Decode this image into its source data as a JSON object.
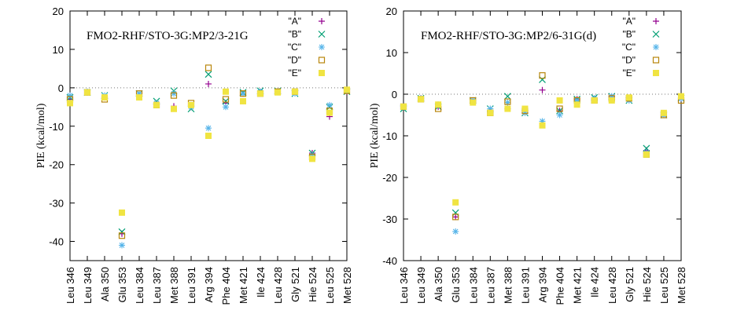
{
  "chart_data": [
    {
      "type": "scatter",
      "title": "FMO2-RHF/STO-3G:MP2/3-21G",
      "xlabel": "",
      "ylabel": "PIE (kcal/mol)",
      "ylim": [
        -45,
        20
      ],
      "yticks": [
        20,
        10,
        0,
        -10,
        -20,
        -30,
        -40
      ],
      "categories": [
        "Leu 346",
        "Leu 349",
        "Ala 350",
        "Glu 353",
        "Leu 384",
        "Leu 387",
        "Met 388",
        "Leu 391",
        "Arg 394",
        "Phe 404",
        "Met 421",
        "Ile 424",
        "Leu 428",
        "Gly 521",
        "Hie 524",
        "Leu 525",
        "Met 528"
      ],
      "zero_line": true,
      "series": [
        {
          "name": "\"A\"",
          "color": "#94008f",
          "marker": "plus",
          "values": [
            -3.0,
            -1.2,
            -2.5,
            -38.0,
            -2.0,
            -4.5,
            -4.8,
            -5.0,
            1.0,
            -4.0,
            -1.5,
            -1.0,
            -1.0,
            -1.2,
            -17.0,
            -7.5,
            -1.0
          ]
        },
        {
          "name": "\"B\"",
          "color": "#009e73",
          "marker": "x",
          "values": [
            -2.5,
            -1.2,
            -2.0,
            -37.5,
            -1.5,
            -3.5,
            -0.8,
            -5.5,
            3.5,
            -3.5,
            -1.2,
            -0.8,
            -0.8,
            -1.5,
            -17.0,
            -5.0,
            -1.0
          ]
        },
        {
          "name": "\"C\"",
          "color": "#56b4e9",
          "marker": "star",
          "values": [
            -2.0,
            -1.0,
            -2.0,
            -41.0,
            -1.5,
            -4.0,
            -1.5,
            -5.0,
            -10.5,
            -5.0,
            -1.5,
            -1.0,
            -1.0,
            -1.5,
            -17.5,
            -4.5,
            -0.8
          ]
        },
        {
          "name": "\"D\"",
          "color": "#b8860b",
          "marker": "square",
          "values": [
            -3.0,
            -1.2,
            -3.0,
            -38.5,
            -1.5,
            -4.5,
            -2.0,
            -4.0,
            5.2,
            -3.0,
            -1.5,
            -1.5,
            -1.0,
            -1.0,
            -18.0,
            -6.0,
            -0.8
          ]
        },
        {
          "name": "\"E\"",
          "color": "#f0e442",
          "marker": "filled",
          "values": [
            -4.0,
            -1.2,
            -2.5,
            -32.5,
            -2.5,
            -4.5,
            -5.5,
            -4.5,
            -12.5,
            -1.0,
            -3.5,
            -1.5,
            -1.2,
            -1.0,
            -18.5,
            -6.5,
            -0.5
          ]
        }
      ]
    },
    {
      "type": "scatter",
      "title": "FMO2-RHF/STO-3G:MP2/6-31G(d)",
      "xlabel": "",
      "ylabel": "PIE (kcal/mol)",
      "ylim": [
        -40,
        20
      ],
      "yticks": [
        20,
        10,
        0,
        -10,
        -20,
        -30,
        -40
      ],
      "categories": [
        "Leu 346",
        "Leu 349",
        "Ala 350",
        "Glu 353",
        "Leu 384",
        "Leu 387",
        "Met 388",
        "Leu 391",
        "Arg 394",
        "Phe 404",
        "Met 421",
        "Ile 424",
        "Leu 428",
        "Gly 521",
        "Hie 524",
        "Leu 525",
        "Met 528"
      ],
      "zero_line": true,
      "series": [
        {
          "name": "\"A\"",
          "color": "#94008f",
          "marker": "plus",
          "values": [
            -3.0,
            -1.0,
            -3.0,
            -29.5,
            -1.5,
            -4.0,
            -3.5,
            -4.0,
            1.0,
            -4.0,
            -1.2,
            -1.2,
            -0.8,
            -1.2,
            -13.5,
            -5.0,
            -1.0
          ]
        },
        {
          "name": "\"B\"",
          "color": "#009e73",
          "marker": "x",
          "values": [
            -3.5,
            -1.0,
            -3.0,
            -28.5,
            -1.5,
            -3.5,
            -0.5,
            -4.5,
            3.5,
            -4.0,
            -1.2,
            -0.8,
            -0.5,
            -1.5,
            -13.0,
            -5.0,
            -1.0
          ]
        },
        {
          "name": "\"C\"",
          "color": "#56b4e9",
          "marker": "star",
          "values": [
            -3.0,
            -1.0,
            -2.5,
            -33.0,
            -1.5,
            -3.5,
            -2.0,
            -4.5,
            -6.5,
            -5.0,
            -1.5,
            -1.0,
            -0.5,
            -1.5,
            -14.0,
            -5.0,
            -1.0
          ]
        },
        {
          "name": "\"D\"",
          "color": "#b8860b",
          "marker": "square",
          "values": [
            -3.0,
            -1.2,
            -3.5,
            -29.5,
            -1.5,
            -4.5,
            -1.8,
            -4.0,
            4.5,
            -3.5,
            -1.5,
            -1.5,
            -1.0,
            -1.0,
            -14.5,
            -5.0,
            -1.5
          ]
        },
        {
          "name": "\"E\"",
          "color": "#f0e442",
          "marker": "filled",
          "values": [
            -3.0,
            -1.2,
            -2.5,
            -26.0,
            -2.0,
            -4.5,
            -3.5,
            -3.5,
            -7.5,
            -1.5,
            -2.5,
            -1.5,
            -1.5,
            -0.8,
            -14.5,
            -4.5,
            -0.5
          ]
        }
      ]
    }
  ]
}
